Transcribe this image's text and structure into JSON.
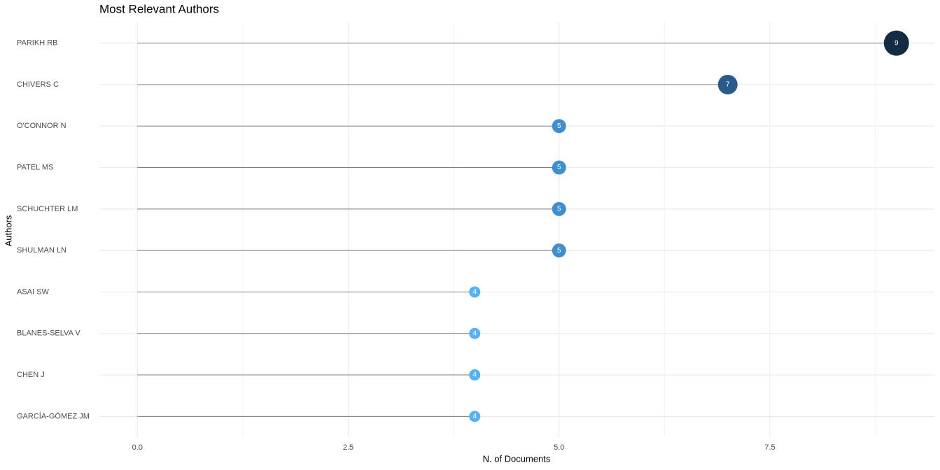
{
  "chart_data": {
    "type": "lollipop",
    "title": "Most Relevant Authors",
    "x_label": "N. of Documents",
    "y_label": "Authors",
    "categories": [
      "PARIKH RB",
      "CHIVERS C",
      "O'CONNOR N",
      "PATEL MS",
      "SCHUCHTER LM",
      "SHULMAN LN",
      "ASAI SW",
      "BLANES-SELVA V",
      "CHEN J",
      "GARCÍA-GÓMEZ JM"
    ],
    "values": [
      9,
      7,
      5,
      5,
      5,
      5,
      4,
      4,
      4,
      4
    ],
    "colors": [
      "#132b43",
      "#2a5a8a",
      "#3f8fd0",
      "#3f8fd0",
      "#3f8fd0",
      "#3f8fd0",
      "#56b1f7",
      "#56b1f7",
      "#56b1f7",
      "#56b1f7"
    ],
    "stem_color": "#7f7f7f",
    "xlim": [
      -0.45,
      9.45
    ],
    "xticks": [
      {
        "value": 0,
        "label": "0.0"
      },
      {
        "value": 2.5,
        "label": "2.5"
      },
      {
        "value": 5,
        "label": "5.0"
      },
      {
        "value": 7.5,
        "label": "7.5"
      }
    ],
    "grid": true
  }
}
